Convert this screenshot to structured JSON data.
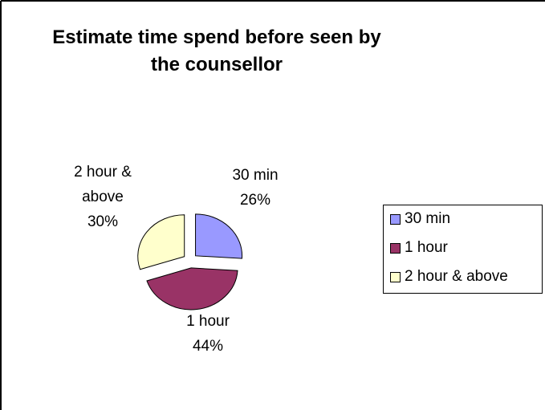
{
  "chart_data": {
    "type": "pie",
    "title": "Estimate time spend before seen by the counsellor",
    "categories": [
      "30 min",
      "1 hour",
      "2 hour & above"
    ],
    "values": [
      26,
      44,
      30
    ],
    "value_labels": [
      "26%",
      "44%",
      "30%"
    ],
    "colors": [
      "#9999ff",
      "#993366",
      "#ffffcc"
    ],
    "legend": "right"
  }
}
